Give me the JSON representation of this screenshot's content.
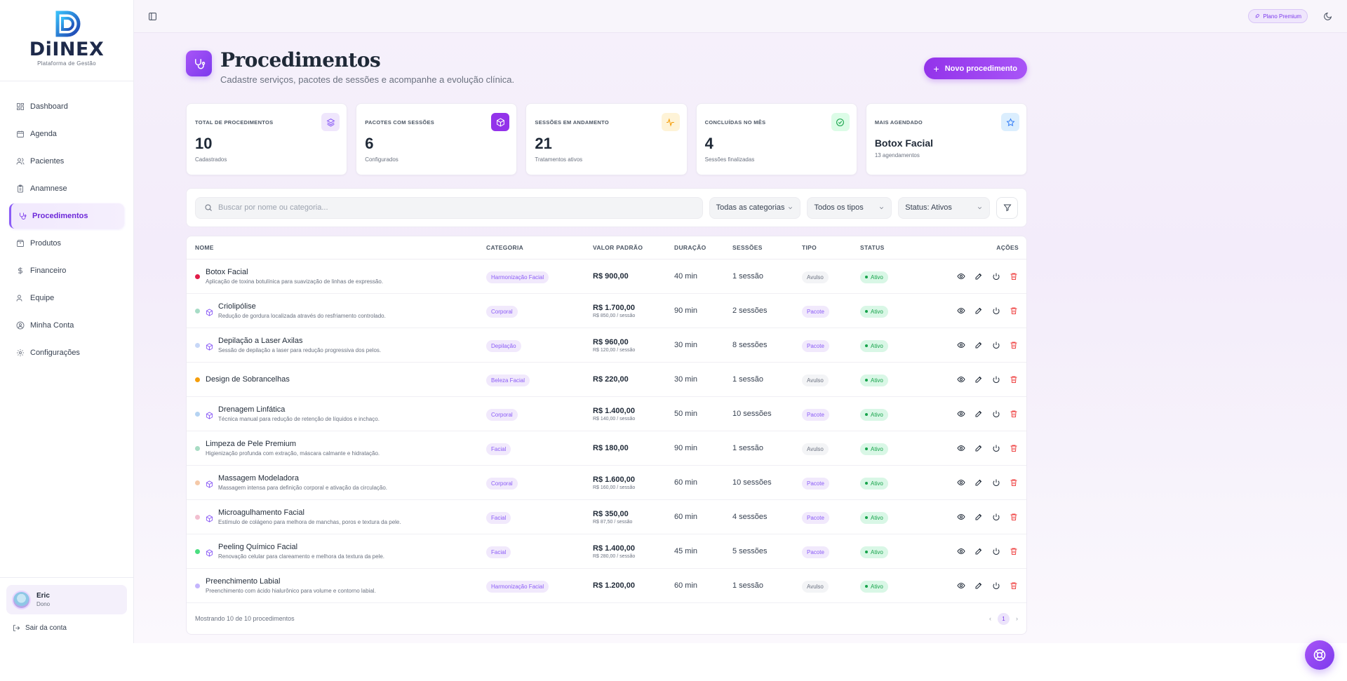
{
  "brand": {
    "name": "DiINEX",
    "subtitle": "Plataforma de Gestão"
  },
  "sidebar": {
    "items": [
      {
        "label": "Dashboard",
        "icon": "dashboard-icon"
      },
      {
        "label": "Agenda",
        "icon": "calendar-icon"
      },
      {
        "label": "Pacientes",
        "icon": "users-icon"
      },
      {
        "label": "Anamnese",
        "icon": "clipboard-icon"
      },
      {
        "label": "Procedimentos",
        "icon": "stethoscope-icon",
        "active": true
      },
      {
        "label": "Produtos",
        "icon": "package-icon"
      },
      {
        "label": "Financeiro",
        "icon": "dollar-icon"
      },
      {
        "label": "Equipe",
        "icon": "team-icon"
      },
      {
        "label": "Minha Conta",
        "icon": "user-circle-icon"
      },
      {
        "label": "Configurações",
        "icon": "gear-icon"
      }
    ],
    "user": {
      "name": "Eric",
      "role": "Dono"
    },
    "logout_label": "Sair da conta"
  },
  "topbar": {
    "plan_label": "Plano Premium"
  },
  "page": {
    "title": "Procedimentos",
    "subtitle": "Cadastre serviços, pacotes de sessões e acompanhe a evolução clínica.",
    "new_button": "Novo procedimento"
  },
  "stats": [
    {
      "label": "TOTAL DE PROCEDIMENTOS",
      "value": "10",
      "hint": "Cadastrados",
      "icon": "layers-icon",
      "icon_bg": "#efe6fc",
      "icon_color": "#8b5cf6"
    },
    {
      "label": "PACOTES COM SESSÕES",
      "value": "6",
      "hint": "Configurados",
      "icon": "package-icon",
      "icon_bg": "#9333ea",
      "icon_color": "#ffffff"
    },
    {
      "label": "SESSÕES EM ANDAMENTO",
      "value": "21",
      "hint": "Tratamentos ativos",
      "icon": "activity-icon",
      "icon_bg": "#fef3d7",
      "icon_color": "#f59e0b"
    },
    {
      "label": "CONCLUÍDAS NO MÊS",
      "value": "4",
      "hint": "Sessões finalizadas",
      "icon": "check-circle-icon",
      "icon_bg": "#dcfce7",
      "icon_color": "#16a34a"
    },
    {
      "label": "MAIS AGENDADO",
      "value": "Botox Facial",
      "hint": "13 agendamentos",
      "icon": "star-icon",
      "icon_bg": "#dbeefe",
      "icon_color": "#3b82f6"
    }
  ],
  "filters": {
    "search_placeholder": "Buscar por nome ou categoria...",
    "category": "Todas as categorias",
    "type": "Todos os tipos",
    "status": "Status: Ativos"
  },
  "table": {
    "headers": {
      "name": "NOME",
      "category": "CATEGORIA",
      "value": "VALOR PADRÃO",
      "duration": "DURAÇÃO",
      "sessions": "SESSÕES",
      "type": "TIPO",
      "status": "STATUS",
      "actions": "AÇÕES"
    },
    "rows": [
      {
        "name": "Botox Facial",
        "desc": "Aplicação de toxina botulínica para suavização de linhas de expressão.",
        "dot": "#e11d48",
        "package": false,
        "category": "Harmonização Facial",
        "value": "R$ 900,00",
        "value_sub": "",
        "duration": "40 min",
        "sessions": "1 sessão",
        "type": "Avulso",
        "status": "Ativo"
      },
      {
        "name": "Criolipólise",
        "desc": "Redução de gordura localizada através do resfriamento controlado.",
        "dot": "#a7dcc6",
        "package": true,
        "category": "Corporal",
        "value": "R$ 1.700,00",
        "value_sub": "R$ 850,00 / sessão",
        "duration": "90 min",
        "sessions": "2 sessões",
        "type": "Pacote",
        "status": "Ativo"
      },
      {
        "name": "Depilação a Laser Axilas",
        "desc": "Sessão de depilação a laser para redução progressiva dos pelos.",
        "dot": "#c7d7f7",
        "package": true,
        "category": "Depilação",
        "value": "R$ 960,00",
        "value_sub": "R$ 120,00 / sessão",
        "duration": "30 min",
        "sessions": "8 sessões",
        "type": "Pacote",
        "status": "Ativo"
      },
      {
        "name": "Design de Sobrancelhas",
        "desc": "",
        "dot": "#f59e0b",
        "package": false,
        "category": "Beleza Facial",
        "value": "R$ 220,00",
        "value_sub": "",
        "duration": "30 min",
        "sessions": "1 sessão",
        "type": "Avulso",
        "status": "Ativo"
      },
      {
        "name": "Drenagem Linfática",
        "desc": "Técnica manual para redução de retenção de líquidos e inchaço.",
        "dot": "#b5d3f2",
        "package": true,
        "category": "Corporal",
        "value": "R$ 1.400,00",
        "value_sub": "R$ 140,00 / sessão",
        "duration": "50 min",
        "sessions": "10 sessões",
        "type": "Pacote",
        "status": "Ativo"
      },
      {
        "name": "Limpeza de Pele Premium",
        "desc": "Higienização profunda com extração, máscara calmante e hidratação.",
        "dot": "#a8dcc4",
        "package": false,
        "category": "Facial",
        "value": "R$ 180,00",
        "value_sub": "",
        "duration": "90 min",
        "sessions": "1 sessão",
        "type": "Avulso",
        "status": "Ativo"
      },
      {
        "name": "Massagem Modeladora",
        "desc": "Massagem intensa para definição corporal e ativação da circulação.",
        "dot": "#f5c9a8",
        "package": true,
        "category": "Corporal",
        "value": "R$ 1.600,00",
        "value_sub": "R$ 160,00 / sessão",
        "duration": "60 min",
        "sessions": "10 sessões",
        "type": "Pacote",
        "status": "Ativo"
      },
      {
        "name": "Microagulhamento Facial",
        "desc": "Estímulo de colágeno para melhora de manchas, poros e textura da pele.",
        "dot": "#f2bfd0",
        "package": true,
        "category": "Facial",
        "value": "R$ 350,00",
        "value_sub": "R$ 87,50 / sessão",
        "duration": "60 min",
        "sessions": "4 sessões",
        "type": "Pacote",
        "status": "Ativo"
      },
      {
        "name": "Peeling Químico Facial",
        "desc": "Renovação celular para clareamento e melhora da textura da pele.",
        "dot": "#4ade80",
        "package": true,
        "category": "Facial",
        "value": "R$ 1.400,00",
        "value_sub": "R$ 280,00 / sessão",
        "duration": "45 min",
        "sessions": "5 sessões",
        "type": "Pacote",
        "status": "Ativo"
      },
      {
        "name": "Preenchimento Labial",
        "desc": "Preenchimento com ácido hialurônico para volume e contorno labial.",
        "dot": "#c4b5fd",
        "package": false,
        "category": "Harmonização Facial",
        "value": "R$ 1.200,00",
        "value_sub": "",
        "duration": "60 min",
        "sessions": "1 sessão",
        "type": "Avulso",
        "status": "Ativo"
      }
    ],
    "footer": "Mostrando 10 de 10 procedimentos",
    "current_page": "1"
  }
}
